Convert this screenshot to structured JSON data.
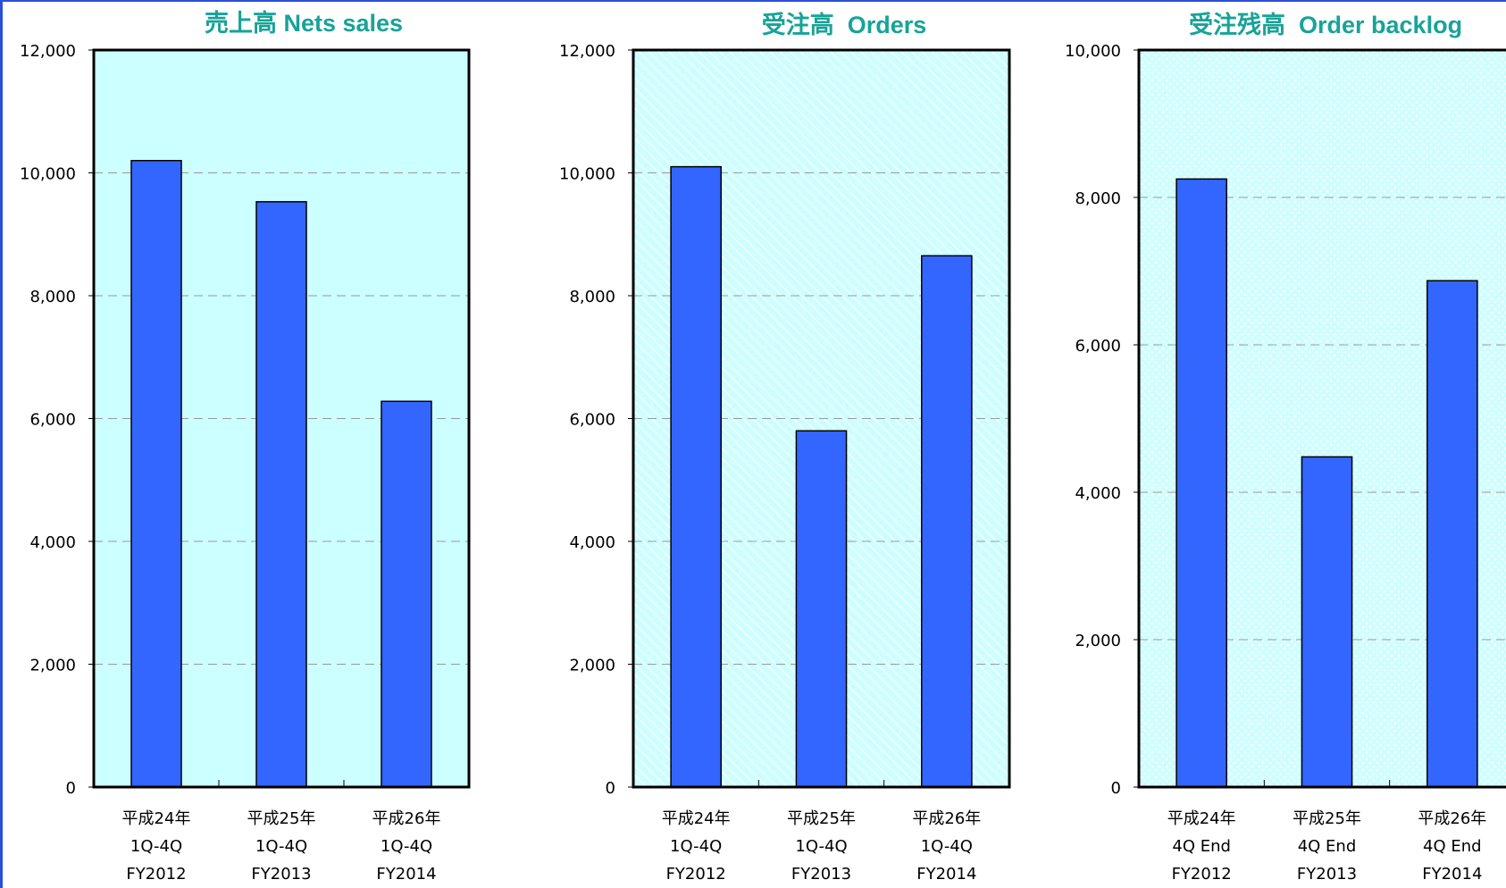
{
  "chart_data": [
    {
      "type": "bar",
      "title": "売上高 Nets sales",
      "categories": [
        [
          "平成24年",
          "1Q-4Q",
          "FY2012"
        ],
        [
          "平成25年",
          "1Q-4Q",
          "FY2013"
        ],
        [
          "平成26年",
          "1Q-4Q",
          "FY2014"
        ]
      ],
      "values": [
        10200,
        9530,
        6280
      ],
      "ylim": [
        0,
        12000
      ],
      "yticks": [
        0,
        2000,
        4000,
        6000,
        8000,
        10000,
        12000
      ],
      "ytick_labels": [
        "0",
        "2,000",
        "4,000",
        "6,000",
        "8,000",
        "10,000",
        "12,000"
      ],
      "grid": true,
      "background": "solid",
      "bar_color": "#3366ff",
      "plot_bg": "#ccffff"
    },
    {
      "type": "bar",
      "title": "受注高  Orders",
      "categories": [
        [
          "平成24年",
          "1Q-4Q",
          "FY2012"
        ],
        [
          "平成25年",
          "1Q-4Q",
          "FY2013"
        ],
        [
          "平成26年",
          "1Q-4Q",
          "FY2014"
        ]
      ],
      "values": [
        10100,
        5800,
        8650
      ],
      "ylim": [
        0,
        12000
      ],
      "yticks": [
        0,
        2000,
        4000,
        6000,
        8000,
        10000,
        12000
      ],
      "ytick_labels": [
        "0",
        "2,000",
        "4,000",
        "6,000",
        "8,000",
        "10,000",
        "12,000"
      ],
      "grid": true,
      "background": "hatched",
      "bar_color": "#3366ff",
      "plot_bg": "#ccffff"
    },
    {
      "type": "bar",
      "title": "受注残高  Order backlog",
      "categories": [
        [
          "平成24年",
          "4Q End",
          "FY2012"
        ],
        [
          "平成25年",
          "4Q End",
          "FY2013"
        ],
        [
          "平成26年",
          "4Q End",
          "FY2014"
        ]
      ],
      "values": [
        8250,
        4480,
        6870
      ],
      "ylim": [
        0,
        10000
      ],
      "yticks": [
        0,
        2000,
        4000,
        6000,
        8000,
        10000
      ],
      "ytick_labels": [
        "0",
        "2,000",
        "4,000",
        "6,000",
        "8,000",
        "10,000"
      ],
      "grid": true,
      "background": "dotted",
      "bar_color": "#3366ff",
      "plot_bg": "#ccffff"
    }
  ]
}
